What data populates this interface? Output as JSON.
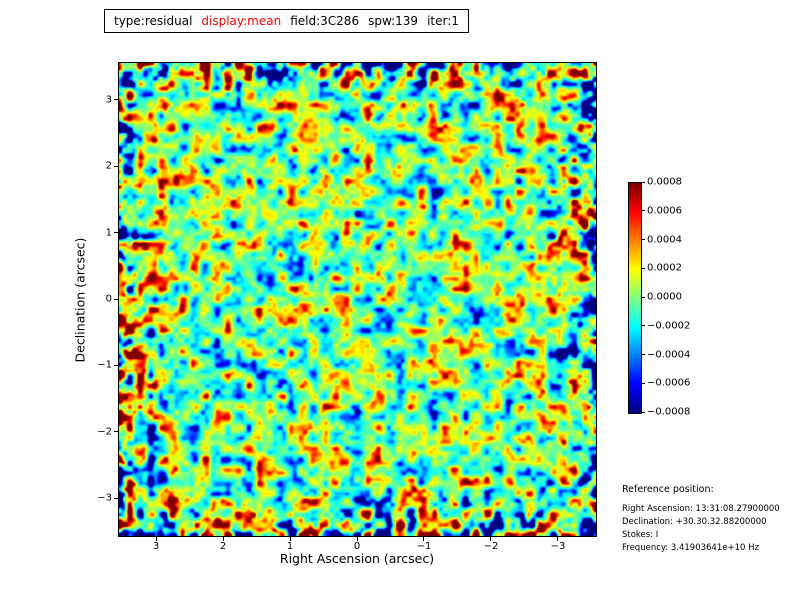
{
  "title": {
    "segments": [
      {
        "text": "type:residual",
        "color": "#000000"
      },
      {
        "text": "display:mean",
        "color": "#ff0000"
      },
      {
        "text": "field:3C286",
        "color": "#000000"
      },
      {
        "text": "spw:139",
        "color": "#000000"
      },
      {
        "text": "iter:1",
        "color": "#000000"
      }
    ]
  },
  "chart_data": {
    "type": "heatmap",
    "description": "Interferometric imaging residual map for field 3C286: spatially correlated noise centered on 0, mostly green/teal (|value| < 0.0002) with scattered beam-sized peaks reaching about +0.0008 (red) and -0.0008 (dark blue), extremes concentrated near the image edges.",
    "xlabel": "Right Ascension (arcsec)",
    "ylabel": "Declination (arcsec)",
    "x_ticks": [
      "3",
      "2",
      "1",
      "0",
      "−1",
      "−2",
      "−3"
    ],
    "x_tick_values": [
      3,
      2,
      1,
      0,
      -1,
      -2,
      -3
    ],
    "x_range": [
      3.56,
      -3.56
    ],
    "y_ticks": [
      "3",
      "2",
      "1",
      "0",
      "−1",
      "−2",
      "−3"
    ],
    "y_tick_values": [
      3,
      2,
      1,
      0,
      -1,
      -2,
      -3
    ],
    "y_range": [
      3.56,
      -3.56
    ],
    "value_range": [
      -0.0008,
      0.0008
    ],
    "colormap": "jet",
    "colorbar_ticks": [
      "0.0008",
      "0.0006",
      "0.0004",
      "0.0002",
      "0.0000",
      "−0.0002",
      "−0.0004",
      "−0.0006",
      "−0.0008"
    ],
    "grid": false,
    "legend_position": "none"
  },
  "reference": {
    "heading": "Reference position:",
    "lines": [
      "Right Ascension: 13:31:08.27900000",
      "Declination: +30.30.32.88200000",
      "Stokes: I",
      "Frequency: 3.41903641e+10 Hz"
    ]
  }
}
